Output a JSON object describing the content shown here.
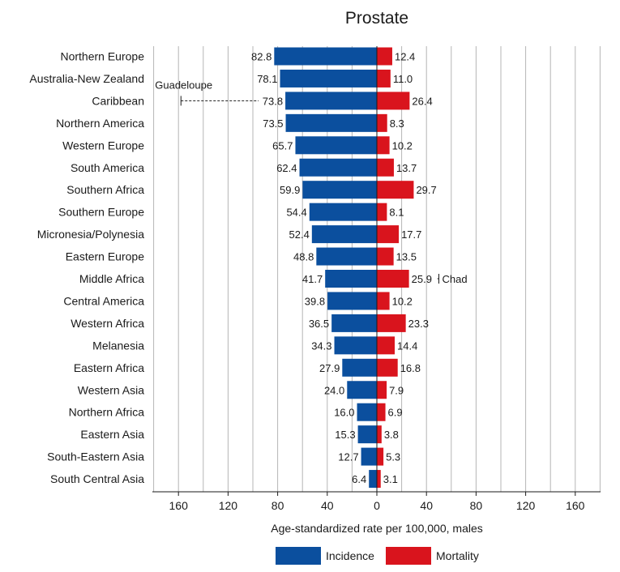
{
  "chart_data": {
    "type": "bar",
    "orientation": "horizontal-diverging",
    "title": "Prostate",
    "xlabel": "Age-standardized rate per 100,000, males",
    "xlim": [
      -180,
      180
    ],
    "x_ticks": [
      -160,
      -120,
      -80,
      -40,
      0,
      40,
      80,
      120,
      160
    ],
    "x_tick_labels": [
      "160",
      "120",
      "80",
      "40",
      "0",
      "40",
      "80",
      "120",
      "160"
    ],
    "grid": true,
    "legend_position": "bottom-center",
    "colors": {
      "Incidence": "#0b4f9e",
      "Mortality": "#d9141d"
    },
    "categories": [
      "Northern Europe",
      "Australia-New Zealand",
      "Caribbean",
      "Northern America",
      "Western Europe",
      "South America",
      "Southern Africa",
      "Southern Europe",
      "Micronesia/Polynesia",
      "Eastern Europe",
      "Middle Africa",
      "Central America",
      "Western Africa",
      "Melanesia",
      "Eastern Africa",
      "Western Asia",
      "Northern Africa",
      "Eastern Asia",
      "South-Eastern Asia",
      "South Central Asia"
    ],
    "series": [
      {
        "name": "Incidence",
        "values": [
          82.8,
          78.1,
          73.8,
          73.5,
          65.7,
          62.4,
          59.9,
          54.4,
          52.4,
          48.8,
          41.7,
          39.8,
          36.5,
          34.3,
          27.9,
          24.0,
          16.0,
          15.3,
          12.7,
          6.4
        ],
        "labels": [
          "82.8",
          "78.1",
          "73.8",
          "73.5",
          "65.7",
          "62.4",
          "59.9",
          "54.4",
          "52.4",
          "48.8",
          "41.7",
          "39.8",
          "36.5",
          "34.3",
          "27.9",
          "24.0",
          "16.0",
          "15.3",
          "12.7",
          "6.4"
        ]
      },
      {
        "name": "Mortality",
        "values": [
          12.4,
          11.0,
          26.4,
          8.3,
          10.2,
          13.7,
          29.7,
          8.1,
          17.7,
          13.5,
          25.9,
          10.2,
          23.3,
          14.4,
          16.8,
          7.9,
          6.9,
          3.8,
          5.3,
          3.1
        ],
        "labels": [
          "12.4",
          "11.0",
          "26.4",
          "8.3",
          "10.2",
          "13.7",
          "29.7",
          "8.1",
          "17.7",
          "13.5",
          "25.9",
          "10.2",
          "23.3",
          "14.4",
          "16.8",
          "7.9",
          "6.9",
          "3.8",
          "5.3",
          "3.1"
        ]
      }
    ],
    "annotations": [
      {
        "text": "Guadeloupe",
        "category": "Caribbean",
        "series": "Incidence",
        "value": 158
      },
      {
        "text": "Chad",
        "category": "Middle Africa",
        "series": "Mortality",
        "value": 50
      }
    ]
  }
}
